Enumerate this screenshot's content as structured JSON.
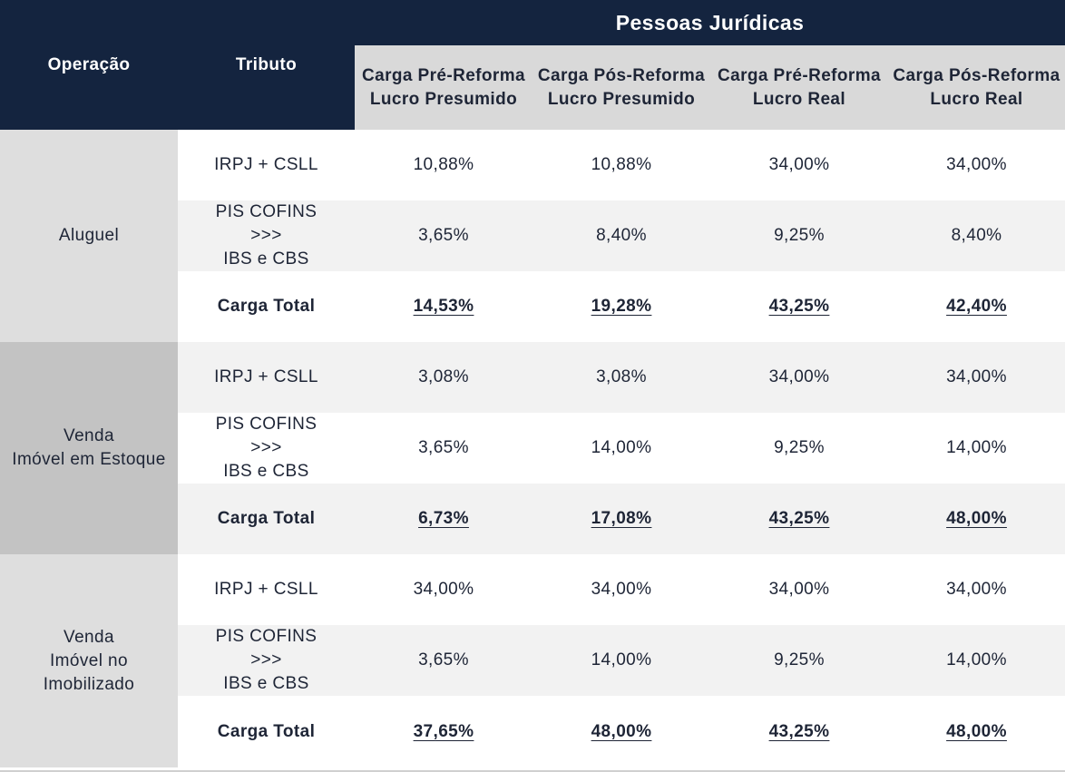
{
  "title": "Pessoas Jurídicas",
  "headers": {
    "operacao": "Operação",
    "tributo": "Tributo",
    "columns": [
      {
        "line1": "Carga Pré-Reforma",
        "line2": "Lucro Presumido"
      },
      {
        "line1": "Carga Pós-Reforma",
        "line2": "Lucro Presumido"
      },
      {
        "line1": "Carga Pré-Reforma",
        "line2": "Lucro Real"
      },
      {
        "line1": "Carga Pós-Reforma",
        "line2": "Lucro Real"
      }
    ]
  },
  "groups": [
    {
      "operacao": [
        "Aluguel"
      ],
      "rows": [
        {
          "tributo": [
            "IRPJ + CSLL"
          ],
          "values": [
            "10,88%",
            "10,88%",
            "34,00%",
            "34,00%"
          ]
        },
        {
          "tributo": [
            "PIS COFINS",
            ">>>",
            "IBS e CBS"
          ],
          "values": [
            "3,65%",
            "8,40%",
            "9,25%",
            "8,40%"
          ]
        },
        {
          "tributo": [
            "Carga Total"
          ],
          "values": [
            "14,53%",
            "19,28%",
            "43,25%",
            "42,40%"
          ]
        }
      ]
    },
    {
      "operacao": [
        "Venda",
        "Imóvel em Estoque"
      ],
      "rows": [
        {
          "tributo": [
            "IRPJ + CSLL"
          ],
          "values": [
            "3,08%",
            "3,08%",
            "34,00%",
            "34,00%"
          ]
        },
        {
          "tributo": [
            "PIS COFINS",
            ">>>",
            "IBS e CBS"
          ],
          "values": [
            "3,65%",
            "14,00%",
            "9,25%",
            "14,00%"
          ]
        },
        {
          "tributo": [
            "Carga Total"
          ],
          "values": [
            "6,73%",
            "17,08%",
            "43,25%",
            "48,00%"
          ]
        }
      ]
    },
    {
      "operacao": [
        "Venda",
        "Imóvel no",
        "Imobilizado"
      ],
      "rows": [
        {
          "tributo": [
            "IRPJ + CSLL"
          ],
          "values": [
            "34,00%",
            "34,00%",
            "34,00%",
            "34,00%"
          ]
        },
        {
          "tributo": [
            "PIS COFINS",
            ">>>",
            "IBS e CBS"
          ],
          "values": [
            "3,65%",
            "14,00%",
            "9,25%",
            "14,00%"
          ]
        },
        {
          "tributo": [
            "Carga Total"
          ],
          "values": [
            "37,65%",
            "48,00%",
            "43,25%",
            "48,00%"
          ]
        }
      ]
    }
  ],
  "colors": {
    "header_dark": "#14243f",
    "header_light": "#d9d9d9",
    "operacao_light": "#dedede",
    "operacao_mid": "#c3c3c3",
    "row_grey": "#f2f2f2"
  }
}
